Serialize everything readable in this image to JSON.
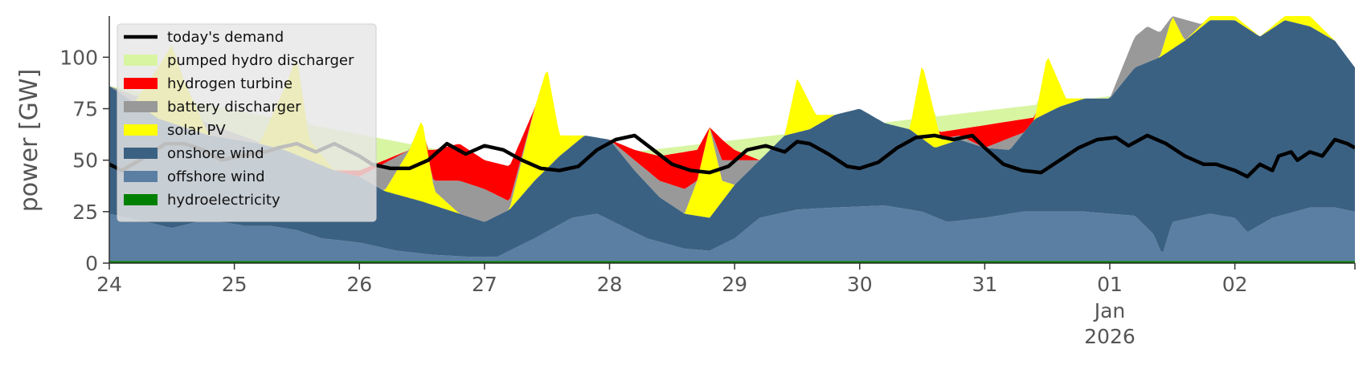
{
  "chart_data": {
    "type": "area",
    "ylabel": "power [GW]",
    "xlabel": "",
    "ylim": [
      0,
      120
    ],
    "xlim": [
      0,
      9.96
    ],
    "yticks": [
      0,
      25,
      50,
      75,
      100
    ],
    "ytick_labels": [
      "0",
      "25",
      "50",
      "75",
      "100"
    ],
    "x_unit": "days since 24 Dec 2025 00:00",
    "xticks": [
      {
        "x": 0,
        "label": "24"
      },
      {
        "x": 1,
        "label": "25"
      },
      {
        "x": 2,
        "label": "26"
      },
      {
        "x": 3,
        "label": "27"
      },
      {
        "x": 4,
        "label": "28"
      },
      {
        "x": 5,
        "label": "29"
      },
      {
        "x": 6,
        "label": "30"
      },
      {
        "x": 7,
        "label": "31"
      },
      {
        "x": 8,
        "label": "01"
      },
      {
        "x": 9,
        "label": "02"
      }
    ],
    "xtick_sublabels": [
      "Jan",
      "2026"
    ],
    "legend_position": "upper-left",
    "stack_order_bottom_to_top": [
      "hydroelectricity",
      "offshore wind",
      "onshore wind",
      "solar PV",
      "battery discharger",
      "hydrogen turbine",
      "pumped hydro discharger"
    ],
    "series": [
      {
        "name": "hydroelectricity",
        "color": "#008000",
        "points": [
          [
            0,
            1
          ],
          [
            10,
            1
          ]
        ]
      },
      {
        "name": "offshore wind",
        "color": "#5b7fa2",
        "points": [
          [
            0,
            24
          ],
          [
            0.15,
            22
          ],
          [
            0.3,
            20
          ],
          [
            0.5,
            17
          ],
          [
            0.7,
            20
          ],
          [
            0.9,
            20
          ],
          [
            1.1,
            18
          ],
          [
            1.3,
            18
          ],
          [
            1.5,
            16
          ],
          [
            1.7,
            12
          ],
          [
            2,
            10
          ],
          [
            2.3,
            6
          ],
          [
            2.6,
            4
          ],
          [
            2.9,
            3
          ],
          [
            3.1,
            3
          ],
          [
            3.4,
            12
          ],
          [
            3.7,
            22
          ],
          [
            3.9,
            24
          ],
          [
            4.1,
            18
          ],
          [
            4.3,
            12
          ],
          [
            4.6,
            7
          ],
          [
            4.8,
            6
          ],
          [
            5,
            12
          ],
          [
            5.2,
            22
          ],
          [
            5.5,
            26
          ],
          [
            5.8,
            27
          ],
          [
            6.2,
            28
          ],
          [
            6.5,
            25
          ],
          [
            6.7,
            20
          ],
          [
            7,
            22
          ],
          [
            7.3,
            25
          ],
          [
            7.8,
            25
          ],
          [
            8,
            24
          ],
          [
            8.2,
            23
          ],
          [
            8.35,
            14
          ],
          [
            8.42,
            4
          ],
          [
            8.5,
            20
          ],
          [
            8.8,
            24
          ],
          [
            9,
            22
          ],
          [
            9.1,
            15
          ],
          [
            9.3,
            22
          ],
          [
            9.6,
            27
          ],
          [
            9.8,
            27
          ],
          [
            9.96,
            25
          ]
        ]
      },
      {
        "name": "onshore wind",
        "color": "#3b6182",
        "points": [
          [
            0,
            86
          ],
          [
            0.2,
            78
          ],
          [
            0.4,
            70
          ],
          [
            0.6,
            66
          ],
          [
            0.8,
            62
          ],
          [
            1,
            60
          ],
          [
            1.2,
            58
          ],
          [
            1.4,
            55
          ],
          [
            1.6,
            50
          ],
          [
            1.8,
            45
          ],
          [
            2,
            42
          ],
          [
            2.2,
            35
          ],
          [
            2.5,
            30
          ],
          [
            2.8,
            24
          ],
          [
            3,
            20
          ],
          [
            3.2,
            26
          ],
          [
            3.4,
            40
          ],
          [
            3.6,
            52
          ],
          [
            3.8,
            62
          ],
          [
            4,
            60
          ],
          [
            4.2,
            45
          ],
          [
            4.4,
            32
          ],
          [
            4.6,
            24
          ],
          [
            4.8,
            22
          ],
          [
            5,
            38
          ],
          [
            5.2,
            50
          ],
          [
            5.4,
            62
          ],
          [
            5.6,
            65
          ],
          [
            5.8,
            72
          ],
          [
            6,
            75
          ],
          [
            6.2,
            68
          ],
          [
            6.4,
            65
          ],
          [
            6.6,
            56
          ],
          [
            6.8,
            60
          ],
          [
            7,
            56
          ],
          [
            7.2,
            55
          ],
          [
            7.4,
            70
          ],
          [
            7.6,
            76
          ],
          [
            7.8,
            80
          ],
          [
            8,
            80
          ],
          [
            8.2,
            95
          ],
          [
            8.4,
            100
          ],
          [
            8.6,
            108
          ],
          [
            8.8,
            118
          ],
          [
            9,
            118
          ],
          [
            9.2,
            110
          ],
          [
            9.4,
            118
          ],
          [
            9.6,
            115
          ],
          [
            9.8,
            108
          ],
          [
            9.96,
            95
          ]
        ]
      },
      {
        "name": "solar PV",
        "color": "#ffff00",
        "points": [
          [
            0,
            86
          ],
          [
            0.2,
            78
          ],
          [
            0.4,
            96
          ],
          [
            0.5,
            106
          ],
          [
            0.6,
            88
          ],
          [
            0.8,
            62
          ],
          [
            1,
            60
          ],
          [
            1.2,
            58
          ],
          [
            1.4,
            85
          ],
          [
            1.5,
            100
          ],
          [
            1.6,
            60
          ],
          [
            1.8,
            45
          ],
          [
            2,
            42
          ],
          [
            2.2,
            35
          ],
          [
            2.4,
            55
          ],
          [
            2.5,
            70
          ],
          [
            2.6,
            35
          ],
          [
            2.8,
            24
          ],
          [
            3,
            20
          ],
          [
            3.2,
            26
          ],
          [
            3.4,
            75
          ],
          [
            3.5,
            95
          ],
          [
            3.6,
            62
          ],
          [
            3.8,
            62
          ],
          [
            4,
            60
          ],
          [
            4.2,
            45
          ],
          [
            4.4,
            32
          ],
          [
            4.6,
            24
          ],
          [
            4.7,
            40
          ],
          [
            4.8,
            66
          ],
          [
            4.9,
            40
          ],
          [
            5,
            38
          ],
          [
            5.2,
            50
          ],
          [
            5.4,
            62
          ],
          [
            5.5,
            90
          ],
          [
            5.65,
            72
          ],
          [
            5.8,
            72
          ],
          [
            6,
            75
          ],
          [
            6.2,
            68
          ],
          [
            6.4,
            65
          ],
          [
            6.5,
            97
          ],
          [
            6.65,
            60
          ],
          [
            6.8,
            60
          ],
          [
            7,
            56
          ],
          [
            7.2,
            55
          ],
          [
            7.4,
            70
          ],
          [
            7.5,
            101
          ],
          [
            7.65,
            80
          ],
          [
            7.8,
            80
          ],
          [
            8,
            80
          ],
          [
            8.2,
            95
          ],
          [
            8.4,
            100
          ],
          [
            8.5,
            120
          ],
          [
            8.6,
            108
          ],
          [
            8.8,
            120
          ],
          [
            9,
            120
          ],
          [
            9.2,
            110
          ],
          [
            9.4,
            120
          ],
          [
            9.6,
            120
          ],
          [
            9.8,
            108
          ],
          [
            9.96,
            95
          ]
        ]
      },
      {
        "name": "battery discharger",
        "color": "#999999",
        "points": [
          [
            0,
            86
          ],
          [
            1.8,
            45
          ],
          [
            2,
            42
          ],
          [
            2.4,
            55
          ],
          [
            2.6,
            40
          ],
          [
            2.8,
            40
          ],
          [
            3,
            36
          ],
          [
            3.2,
            30
          ],
          [
            3.4,
            75
          ],
          [
            3.6,
            62
          ],
          [
            3.8,
            62
          ],
          [
            4,
            60
          ],
          [
            4.2,
            50
          ],
          [
            4.4,
            40
          ],
          [
            4.6,
            36
          ],
          [
            4.7,
            40
          ],
          [
            4.8,
            66
          ],
          [
            4.9,
            50
          ],
          [
            5,
            50
          ],
          [
            5.2,
            50
          ],
          [
            6.6,
            60
          ],
          [
            6.8,
            62
          ],
          [
            7,
            56
          ],
          [
            8,
            80
          ],
          [
            8.2,
            110
          ],
          [
            8.3,
            115
          ],
          [
            8.4,
            112
          ],
          [
            8.5,
            120
          ],
          [
            9.96,
            95
          ]
        ]
      },
      {
        "name": "hydrogen turbine",
        "color": "#ff0000",
        "points": [
          [
            0,
            86
          ],
          [
            1.8,
            45
          ],
          [
            2,
            45
          ],
          [
            2.2,
            50
          ],
          [
            2.4,
            55
          ],
          [
            2.6,
            55
          ],
          [
            2.8,
            58
          ],
          [
            3,
            50
          ],
          [
            3.2,
            47
          ],
          [
            3.4,
            75
          ],
          [
            3.6,
            62
          ],
          [
            3.8,
            62
          ],
          [
            4,
            60
          ],
          [
            4.2,
            55
          ],
          [
            4.4,
            52
          ],
          [
            4.6,
            54
          ],
          [
            4.7,
            55
          ],
          [
            4.8,
            66
          ],
          [
            4.9,
            60
          ],
          [
            5,
            55
          ],
          [
            5.2,
            50
          ],
          [
            9.96,
            95
          ]
        ]
      },
      {
        "name": "pumped hydro discharger",
        "color": "#d8f5a2",
        "points": [
          [
            0,
            86
          ],
          [
            2.9,
            52
          ],
          [
            3,
            48
          ],
          [
            3.1,
            46
          ],
          [
            3.2,
            47
          ],
          [
            9.96,
            95
          ]
        ]
      },
      {
        "name": "today's demand",
        "color": "#000000",
        "type": "line",
        "points": [
          [
            0,
            48
          ],
          [
            0.1,
            45
          ],
          [
            0.3,
            52
          ],
          [
            0.45,
            58
          ],
          [
            0.6,
            58
          ],
          [
            0.75,
            55
          ],
          [
            0.9,
            50
          ],
          [
            1.05,
            52
          ],
          [
            1.25,
            54
          ],
          [
            1.35,
            56
          ],
          [
            1.5,
            58
          ],
          [
            1.65,
            54
          ],
          [
            1.8,
            58
          ],
          [
            2,
            52
          ],
          [
            2.1,
            48
          ],
          [
            2.25,
            46
          ],
          [
            2.4,
            46
          ],
          [
            2.55,
            50
          ],
          [
            2.7,
            58
          ],
          [
            2.85,
            53
          ],
          [
            3,
            57
          ],
          [
            3.15,
            55
          ],
          [
            3.3,
            50
          ],
          [
            3.45,
            46
          ],
          [
            3.6,
            45
          ],
          [
            3.75,
            47
          ],
          [
            3.9,
            55
          ],
          [
            4.05,
            60
          ],
          [
            4.2,
            62
          ],
          [
            4.35,
            55
          ],
          [
            4.5,
            48
          ],
          [
            4.65,
            45
          ],
          [
            4.8,
            44
          ],
          [
            4.95,
            47
          ],
          [
            5.1,
            55
          ],
          [
            5.25,
            57
          ],
          [
            5.4,
            54
          ],
          [
            5.5,
            59
          ],
          [
            5.6,
            58
          ],
          [
            5.75,
            53
          ],
          [
            5.9,
            47
          ],
          [
            6,
            46
          ],
          [
            6.15,
            49
          ],
          [
            6.3,
            56
          ],
          [
            6.45,
            61
          ],
          [
            6.6,
            62
          ],
          [
            6.75,
            60
          ],
          [
            6.9,
            62
          ],
          [
            7,
            56
          ],
          [
            7.15,
            48
          ],
          [
            7.3,
            45
          ],
          [
            7.45,
            44
          ],
          [
            7.6,
            50
          ],
          [
            7.75,
            56
          ],
          [
            7.9,
            60
          ],
          [
            8.05,
            61
          ],
          [
            8.15,
            57
          ],
          [
            8.3,
            62
          ],
          [
            8.45,
            58
          ],
          [
            8.6,
            52
          ],
          [
            8.75,
            48
          ],
          [
            8.85,
            48
          ],
          [
            9,
            45
          ],
          [
            9.1,
            42
          ],
          [
            9.2,
            48
          ],
          [
            9.3,
            45
          ],
          [
            9.35,
            52
          ],
          [
            9.45,
            54
          ],
          [
            9.5,
            50
          ],
          [
            9.6,
            54
          ],
          [
            9.7,
            52
          ],
          [
            9.8,
            60
          ],
          [
            9.9,
            58
          ],
          [
            9.96,
            56
          ]
        ]
      }
    ],
    "legend": [
      {
        "label": "today's demand",
        "color": "#000000",
        "kind": "line"
      },
      {
        "label": "pumped hydro discharger",
        "color": "#d8f5a2",
        "kind": "patch"
      },
      {
        "label": "hydrogen turbine",
        "color": "#ff0000",
        "kind": "patch"
      },
      {
        "label": "battery discharger",
        "color": "#999999",
        "kind": "patch"
      },
      {
        "label": "solar PV",
        "color": "#ffff00",
        "kind": "patch"
      },
      {
        "label": "onshore wind",
        "color": "#3b6182",
        "kind": "patch"
      },
      {
        "label": "offshore wind",
        "color": "#5b7fa2",
        "kind": "patch"
      },
      {
        "label": "hydroelectricity",
        "color": "#008000",
        "kind": "patch"
      }
    ]
  }
}
